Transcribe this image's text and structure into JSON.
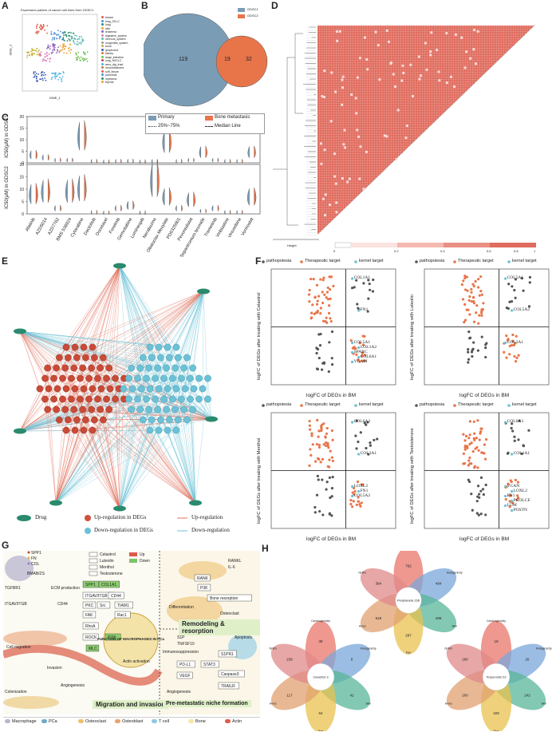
{
  "panels": {
    "a": "A",
    "b": "B",
    "c": "C",
    "d": "D",
    "e": "E",
    "f": "F",
    "g": "G",
    "h": "H"
  },
  "panel_a": {
    "title": "Expression pattern of cancer cell lines from GDSC1",
    "xlabel": "tSNE_1",
    "ylabel": "tSNE_2",
    "legend": [
      "breast",
      "lung_SCLC",
      "lung",
      "skin",
      "leukemia",
      "digestive_system",
      "nervous_system",
      "urogenital_system",
      "bone",
      "lymphoma",
      "kidney",
      "large_intestine",
      "lung_NSCLC",
      "aero_dig_tract",
      "neuroblastoma",
      "soft_tissue",
      "pancreas",
      "myeloma",
      "thyroid"
    ]
  },
  "panel_b": {
    "legend": [
      "GDSC1",
      "GDSC2"
    ],
    "left": "119",
    "overlap": "19",
    "right": "32"
  },
  "panel_c": {
    "legend": {
      "primary": "Primary",
      "bone": "Bone metastasis",
      "quartile": "25%~75%",
      "median": "Median Line"
    },
    "ylabel_top": "IC50(μM) in GDSC1",
    "ylabel_bottom": "IC50(μM) in GDSC2",
    "drugs": [
      "Afatinib",
      "AZD5014",
      "AZD7762",
      "BMS 536924",
      "Cytarabine",
      "Dactolisib",
      "Docetaxel",
      "Foretinib",
      "Gemcitabine",
      "Luminespib",
      "Nerabuzine",
      "Obatoclax Mesylate",
      "PD0325901",
      "Pevonedistat",
      "Sepantronium bromide",
      "Trametinib",
      "Vinblastine",
      "Vinorelbine",
      "Vorinostat"
    ],
    "yticks_top": [
      "0",
      "5",
      "10",
      "15",
      "20"
    ],
    "yticks_bottom": [
      "0",
      "5",
      "10",
      "15",
      "20"
    ]
  },
  "panel_d": {
    "height_label": "Height",
    "colorbar_ticks": [
      "0",
      "0.2",
      "0.4",
      "0.6",
      "0.8",
      "1"
    ]
  },
  "panel_e": {
    "legend": {
      "drug": "Drug",
      "up": "Up-regulation in DEGs",
      "down": "Down-regulation in DEGs",
      "up_line": "Up-regulation",
      "down_line": "Down-regulation"
    }
  },
  "panel_f": {
    "legend": [
      "pathopoiesia",
      "Therapeutic target",
      "kernel target"
    ],
    "xlabel": "logFC of DEGs in BM",
    "plots": [
      {
        "ylabel": "logFC of DEGs after treating with Celastrol",
        "labels": [
          "COL1A1",
          "FN1",
          "COL5A1",
          "COL1A2",
          "SPARC",
          "COL6A1",
          "VCAM"
        ]
      },
      {
        "ylabel": "logFC of DEGs after treating with Luteolin",
        "labels": [
          "COL5A1",
          "COL5A2",
          "COL3A1"
        ]
      },
      {
        "ylabel": "logFC of DEGs after treating with Menthol",
        "labels": [
          "COL6A3",
          "COL3A1",
          "LOXL2",
          "FN1",
          "COL5A2"
        ]
      },
      {
        "ylabel": "logFC of DEGs after treating with Testosterone",
        "labels": [
          "COL6A3",
          "COL1A1",
          "VCAN",
          "LOXL2",
          "FN1",
          "PCOLCE",
          "LUM",
          "POSTN"
        ]
      }
    ]
  },
  "panel_g": {
    "legend_left": [
      "SPP1",
      "FN",
      "COL"
    ],
    "drugs": [
      "Celastrol",
      "Luteolin",
      "Menthol",
      "Testosterone"
    ],
    "updown": [
      "Up",
      "Down"
    ],
    "nodes": [
      "SPP1",
      "COL1A1",
      "ITGAV/ITGB",
      "CD44",
      "PKC",
      "Src",
      "TIAM1",
      "FAK",
      "Rac1",
      "RhoA",
      "ROCK",
      "MLC",
      "PI3K"
    ],
    "labels": [
      "BMAB/ZS",
      "TGFBR1",
      "ECM production",
      "ITGAV/ITGB",
      "CD44",
      "Cell migration",
      "Invasion",
      "Angiogenesis",
      "Colonization",
      "Actin activation"
    ],
    "center": "FUNCTION OF MACROPHAGES IN PCa",
    "right_labels": [
      "RANKL",
      "IL-6",
      "RANK",
      "P38",
      "Bone resorption",
      "Differentiation",
      "Osteoclast",
      "S1P",
      "TNFSF10",
      "S1PR1",
      "PD-L1",
      "STAT3",
      "VEGF",
      "Caspase3",
      "TRAILR",
      "Apoptosis",
      "Immunosuppression",
      "Angiogenesis"
    ],
    "banners": [
      "Migration and invasion",
      "Remodeling & resorption",
      "Pre-metastatic niche formation"
    ],
    "bottom_legend": [
      "Macrophage",
      "PCa",
      "Osteoclast",
      "Osteoblast",
      "T cell",
      "Bone",
      "Actin"
    ]
  },
  "panel_h": {
    "centers": [
      "Periplaneta 236",
      "Celastrol 3",
      "Terpenoids 22"
    ],
    "petal_labels": [
      "Carcinogenicity",
      "Mutagenicity",
      "Skin",
      "Eye",
      "Ames",
      "hERG"
    ],
    "top_values": [
      "762",
      "484",
      "489",
      "287",
      "618",
      "384"
    ],
    "left_values": [
      "38",
      "8",
      "42",
      "64",
      "117",
      "239"
    ],
    "right_values": [
      "19",
      "26",
      "242",
      "329",
      "200",
      "260"
    ]
  }
}
